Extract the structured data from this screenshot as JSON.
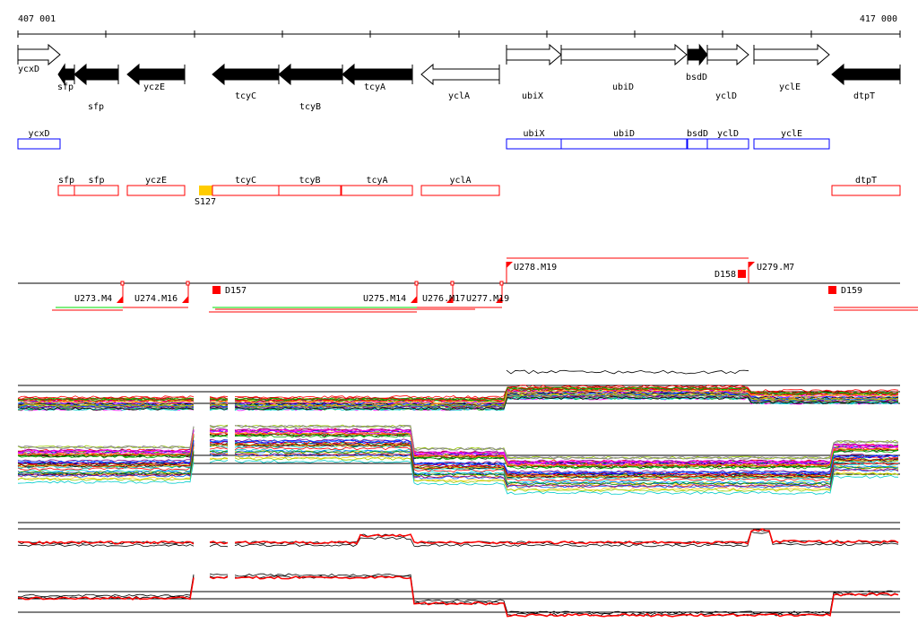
{
  "ruler": {
    "start_label": "407 001",
    "end_label": "417 000"
  },
  "annotated_genes": [
    {
      "name": "ycxD",
      "strand": "+",
      "fill": "white"
    },
    {
      "name": "sfp",
      "strand": "-",
      "fill": "black"
    },
    {
      "name": "sfp",
      "strand": "-",
      "fill": "black"
    },
    {
      "name": "yczE",
      "strand": "-",
      "fill": "black"
    },
    {
      "name": "tcyC",
      "strand": "-",
      "fill": "black"
    },
    {
      "name": "tcyB",
      "strand": "-",
      "fill": "black"
    },
    {
      "name": "tcyA",
      "strand": "-",
      "fill": "black"
    },
    {
      "name": "yclA",
      "strand": "-",
      "fill": "white"
    },
    {
      "name": "ubiX",
      "strand": "+",
      "fill": "white"
    },
    {
      "name": "ubiD",
      "strand": "+",
      "fill": "white"
    },
    {
      "name": "bsdD",
      "strand": "+",
      "fill": "black"
    },
    {
      "name": "yclD",
      "strand": "+",
      "fill": "white"
    },
    {
      "name": "yclE",
      "strand": "+",
      "fill": "white"
    },
    {
      "name": "dtpT",
      "strand": "-",
      "fill": "black"
    }
  ],
  "forward_boxes": [
    "ycxD",
    "ubiX",
    "ubiD",
    "bsdD",
    "yclD",
    "yclE"
  ],
  "reverse_boxes": [
    "sfp",
    "sfp",
    "yczE",
    "tcyC",
    "tcyB",
    "tcyA",
    "yclA",
    "dtpT"
  ],
  "signal_feature": {
    "label": "S127",
    "color": "#ffcc00"
  },
  "transcription_units": [
    "U273.M4",
    "U274.M16",
    "D157",
    "U275.M14",
    "U276.M17",
    "U277.M19",
    "U278.M19",
    "D158",
    "U279.M7",
    "D159"
  ],
  "colors": {
    "forward": "#0000ff",
    "reverse": "#ff0000",
    "segment_green": "#00dd00"
  }
}
